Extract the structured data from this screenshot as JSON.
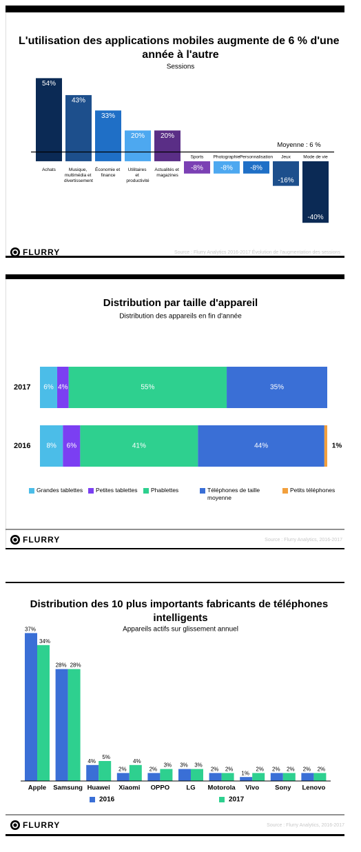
{
  "chart_data": [
    {
      "type": "bar",
      "title": "L'utilisation des applications mobiles augmente de 6 % d'une année à l'autre",
      "subtitle": "Sessions",
      "categories": [
        "Achats",
        "Musique, multimédia et divertissement",
        "Économie et finance",
        "Utilitaires et productivité",
        "Actualités et magazines",
        "Sports",
        "Photographie",
        "Personnalisation",
        "Jeux",
        "Mode de vie"
      ],
      "values": [
        54,
        43,
        33,
        20,
        20,
        -8,
        -8,
        -8,
        -16,
        -40
      ],
      "value_labels": [
        "54%",
        "43%",
        "33%",
        "20%",
        "20%",
        "-8%",
        "-8%",
        "-8%",
        "-16%",
        "-40%"
      ],
      "colors": [
        "#0b2a55",
        "#1d4f8c",
        "#1f6fc6",
        "#4da8f0",
        "#5a2e86",
        "#7b40b4",
        "#4da8f0",
        "#1f6fc6",
        "#1d4f8c",
        "#0b2a55"
      ],
      "ylim": [
        -52,
        60
      ],
      "average": {
        "value": 6,
        "label": "Moyenne : 6 %"
      },
      "logo": "FLURRY",
      "source": "Source : Flurry Analytics 2016-2017 Évolution de l'augmentation des sessions"
    },
    {
      "type": "stacked_bar",
      "title": "Distribution par taille d'appareil",
      "subtitle": "Distribution des appareils en fin d'année",
      "categories": [
        "2017",
        "2016"
      ],
      "xlim": [
        0,
        100
      ],
      "series": [
        {
          "name": "Grandes tablettes",
          "color": "#4bbde8",
          "values": [
            6,
            8
          ],
          "value_labels": [
            "6%",
            "8%"
          ]
        },
        {
          "name": "Petites tablettes",
          "color": "#7b3ff2",
          "values": [
            4,
            6
          ],
          "value_labels": [
            "4%",
            "6%"
          ]
        },
        {
          "name": "Phablettes",
          "color": "#2ed08f",
          "values": [
            55,
            41
          ],
          "value_labels": [
            "55%",
            "41%"
          ]
        },
        {
          "name": "Téléphones de taille moyenne",
          "color": "#3a6fd6",
          "values": [
            35,
            44
          ],
          "value_labels": [
            "35%",
            "44%"
          ]
        },
        {
          "name": "Petits téléphones",
          "color": "#f2a03d",
          "values": [
            null,
            1
          ],
          "value_labels": [
            null,
            "1%"
          ]
        }
      ],
      "logo": "FLURRY",
      "source": "Source : Flurry Analytics, 2016-2017"
    },
    {
      "type": "bar",
      "title": "Distribution des 10 plus importants fabricants de téléphones intelligents",
      "subtitle": "Appareils actifs sur glissement annuel",
      "categories": [
        "Apple",
        "Samsung",
        "Huawei",
        "Xiaomi",
        "OPPO",
        "LG",
        "Motorola",
        "Vivo",
        "Sony",
        "Lenovo"
      ],
      "series": [
        {
          "name": "2016",
          "color": "#3a6fd6",
          "values": [
            37,
            28,
            4,
            2,
            2,
            3,
            2,
            1,
            2,
            2
          ],
          "value_labels": [
            "37%",
            "28%",
            "4%",
            "2%",
            "2%",
            "3%",
            "2%",
            "1%",
            "2%",
            "2%"
          ]
        },
        {
          "name": "2017",
          "color": "#2ed08f",
          "values": [
            34,
            28,
            5,
            4,
            3,
            3,
            2,
            2,
            2,
            2
          ],
          "value_labels": [
            "34%",
            "28%",
            "5%",
            "4%",
            "3%",
            "3%",
            "2%",
            "2%",
            "2%",
            "2%"
          ]
        }
      ],
      "ylim": [
        0,
        40
      ],
      "logo": "FLURRY",
      "source": "Source : Flurry Analytics, 2016-2017"
    }
  ]
}
